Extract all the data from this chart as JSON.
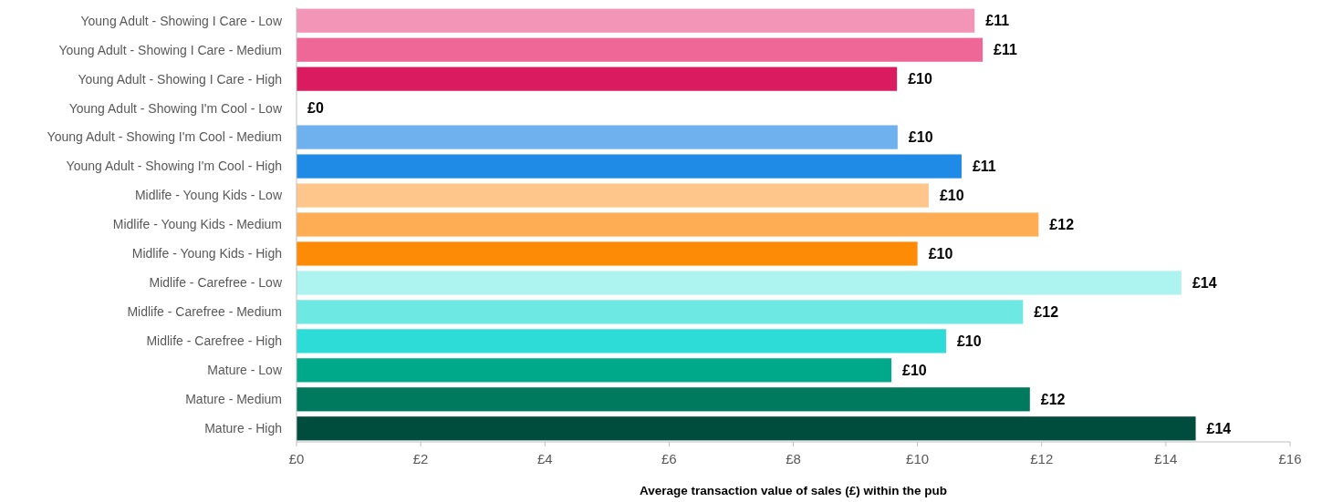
{
  "chart_data": {
    "type": "bar",
    "orientation": "horizontal",
    "xlabel": "Average transaction value of sales (£) within the pub",
    "categories": [
      "Young Adult - Showing I Care - Low",
      "Young Adult - Showing I Care - Medium",
      "Young Adult - Showing I Care - High",
      "Young Adult - Showing I'm Cool - Low",
      "Young Adult - Showing I'm Cool - Medium",
      "Young Adult - Showing I'm Cool - High",
      "Midlife - Young Kids - Low",
      "Midlife - Young Kids - Medium",
      "Midlife - Young Kids - High",
      "Midlife - Carefree - Low",
      "Midlife - Carefree - Medium",
      "Midlife - Carefree - High",
      "Mature - Low",
      "Mature - Medium",
      "Mature - High"
    ],
    "values": [
      10.92,
      11.05,
      9.67,
      0,
      9.68,
      10.71,
      10.18,
      11.95,
      10.0,
      14.25,
      11.7,
      10.46,
      9.58,
      11.81,
      14.48
    ],
    "colors": [
      "#f395b6",
      "#ee6796",
      "#da1b5f",
      "#9cc9f2",
      "#6fb0ee",
      "#1f8be6",
      "#fec68a",
      "#fead55",
      "#fe8b06",
      "#adf3ef",
      "#6de8e2",
      "#2ddcd6",
      "#00a98a",
      "#007a5e",
      "#004d3d"
    ],
    "value_labels": [
      "£11",
      "£11",
      "£10",
      "£0",
      "£10",
      "£11",
      "£10",
      "£12",
      "£10",
      "£14",
      "£12",
      "£10",
      "£10",
      "£12",
      "£14"
    ],
    "xlim": [
      0,
      16
    ],
    "xticks": [
      {
        "value": 0,
        "label": "£0"
      },
      {
        "value": 2,
        "label": "£2"
      },
      {
        "value": 4,
        "label": "£4"
      },
      {
        "value": 6,
        "label": "£6"
      },
      {
        "value": 8,
        "label": "£8"
      },
      {
        "value": 10,
        "label": "£10"
      },
      {
        "value": 12,
        "label": "£12"
      },
      {
        "value": 14,
        "label": "£14"
      },
      {
        "value": 16,
        "label": "£16"
      }
    ]
  }
}
